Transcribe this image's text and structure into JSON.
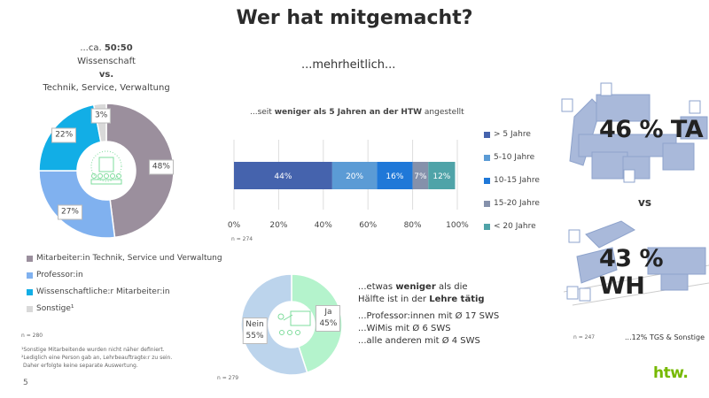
{
  "title": "Wer hat mitgemacht?",
  "page_number": "5",
  "left": {
    "heading_prefix": "...ca. ",
    "heading_bold": "50:50",
    "line2": "Wissenschaft",
    "line3": "vs.",
    "line4": "Technik, Service, Verwaltung",
    "icon": "building-people-icon",
    "n": "n = 280",
    "footnotes": [
      "¹Sonstige Mitarbeitende wurden nicht näher definiert.",
      "²Lediglich eine Person gab an, Lehrbeauftragte:r zu sein.",
      "Daher erfolgte keine separate Auswertung."
    ]
  },
  "middle": {
    "subtitle": "...mehrheitlich...",
    "bar_n": "n = 274",
    "donut_n": "n = 279",
    "bar_title": {
      "pre": "...seit ",
      "bold": "weniger als 5 Jahren an der HTW",
      "post": " angestellt"
    },
    "teach": {
      "l1_pre": "...etwas ",
      "l1_bold": "weniger",
      "l1_post": " als die",
      "l2_pre": "Hälfte ist in der ",
      "l2_bold": "Lehre tätig",
      "lines": [
        "...Professor:innen mit Ø 17 SWS",
        "...WiMis mit Ø 6 SWS",
        "...alle anderen mit Ø 4 SWS"
      ]
    },
    "teach_icon": "teacher-presentation-icon"
  },
  "right": {
    "ta": "46 % TA",
    "vs": "vs",
    "wh": "43 % WH",
    "n": "n = 247",
    "other": "...12% TGS & Sonstige",
    "logo": "htw."
  },
  "chart_data": [
    {
      "type": "pie",
      "donut": true,
      "slices": [
        {
          "label": "Mitarbeiter:in Technik, Service und Verwaltung",
          "value": 48,
          "display": "48%",
          "color": "#9b8f9d"
        },
        {
          "label": "Professor:in",
          "value": 27,
          "display": "27%",
          "color": "#80b1ef"
        },
        {
          "label": "Wissenschaftliche:r Mitarbeiter:in",
          "value": 22,
          "display": "22%",
          "color": "#12aee6"
        },
        {
          "label": "Sonstige¹",
          "value": 3,
          "display": "3%",
          "color": "#d9d9d9"
        }
      ],
      "legend": "bottom"
    },
    {
      "type": "bar",
      "orientation": "horizontal",
      "stacked": true,
      "xlim": [
        0,
        100
      ],
      "xticks": [
        "0%",
        "20%",
        "40%",
        "60%",
        "80%",
        "100%"
      ],
      "grid": true,
      "legend": "right",
      "series": [
        {
          "name": "> 5 Jahre",
          "value": 44,
          "display": "44%",
          "color": "#4563ad"
        },
        {
          "name": "5-10 Jahre",
          "value": 20,
          "display": "20%",
          "color": "#5b9bd5"
        },
        {
          "name": "10-15 Jahre",
          "value": 16,
          "display": "16%",
          "color": "#1f78d8"
        },
        {
          "name": "15-20 Jahre",
          "value": 7,
          "display": "7%",
          "color": "#8591ab"
        },
        {
          "name": "< 20 Jahre",
          "value": 12,
          "display": "12%",
          "color": "#4fa3a8"
        }
      ]
    },
    {
      "type": "pie",
      "donut": true,
      "slices": [
        {
          "label": "Ja",
          "value": 45,
          "display": "45%",
          "color": "#b4f3cc"
        },
        {
          "label": "Nein",
          "value": 55,
          "display": "55%",
          "color": "#bcd4ec"
        }
      ]
    }
  ]
}
